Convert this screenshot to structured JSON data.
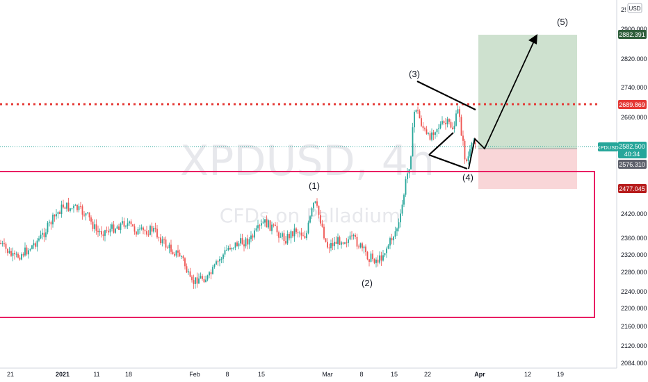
{
  "watermark": {
    "symbol": "XPDUSD, 4h",
    "description": "CFDs on Palladium"
  },
  "currency_label": "USD",
  "price_axis": {
    "tick_labels": [
      "2900.000",
      "2820.000",
      "2740.000",
      "2660.000",
      "2420.000",
      "2360.000",
      "2320.000",
      "2280.000",
      "2240.000",
      "2200.000",
      "2160.000",
      "2120.000",
      "2084.000"
    ],
    "top_tick": "2!"
  },
  "time_axis": {
    "tick_labels": [
      "21",
      "2021",
      "11",
      "18",
      "Feb",
      "8",
      "15",
      "Mar",
      "8",
      "15",
      "22",
      "Apr",
      "12",
      "19"
    ]
  },
  "price_tags": {
    "target": "2882.391",
    "resistance": "2689.869",
    "symbol": "XPDUSD",
    "last_price": "2582.500",
    "countdown": "40:34",
    "entry": "2576.310",
    "stop": "2477.045"
  },
  "wave_labels": {
    "w1": "(1)",
    "w2": "(2)",
    "w3": "(3)",
    "w4": "(4)",
    "w5": "(5)"
  },
  "colors": {
    "bull": "#26a69a",
    "bear": "#ef5350",
    "resistance": "#e53935",
    "box": "#e91e63",
    "target_zone": "#a5c9a8",
    "stop_zone": "#f4b4b8",
    "target_tag": "#2e5e3a",
    "stop_tag": "#b71c1c",
    "symbol_tag": "#26a69a",
    "entry_tag": "#5d606b"
  }
}
